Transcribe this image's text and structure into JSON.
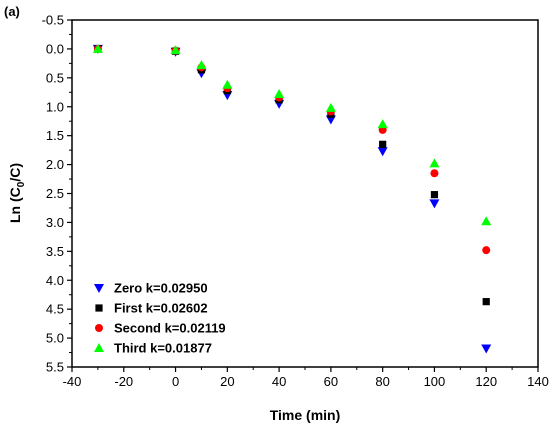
{
  "chart_data": {
    "type": "scatter",
    "panel_label": "(a)",
    "xlabel": "Time (min)",
    "ylabel": {
      "main": "Ln (C",
      "sub": "0",
      "tail": "/C)"
    },
    "xlim": [
      -40,
      140
    ],
    "ylim": [
      -0.5,
      5.5
    ],
    "y_inverted": true,
    "xticks": [
      -40,
      -20,
      0,
      20,
      40,
      60,
      80,
      100,
      120,
      140
    ],
    "yticks": [
      "-0.5",
      "0.0",
      "0.5",
      "1.0",
      "1.5",
      "2.0",
      "2.5",
      "3.0",
      "3.5",
      "4.0",
      "4.5",
      "5.0",
      "5.5"
    ],
    "legend_position": "bottom-left",
    "x": [
      -30,
      0,
      10,
      20,
      40,
      60,
      80,
      100,
      120
    ],
    "series": [
      {
        "name": "Zero k=0.02950",
        "marker": "triangle-down",
        "color": "#0000ff",
        "values": [
          0.0,
          0.05,
          0.42,
          0.8,
          0.95,
          1.22,
          1.77,
          2.67,
          5.18
        ]
      },
      {
        "name": "First k=0.02602",
        "marker": "square",
        "color": "#000000",
        "values": [
          0.0,
          0.04,
          0.36,
          0.72,
          0.88,
          1.13,
          1.65,
          2.52,
          4.37
        ]
      },
      {
        "name": "Second k=0.02119",
        "marker": "circle",
        "color": "#ff0000",
        "values": [
          0.0,
          0.03,
          0.32,
          0.68,
          0.84,
          1.08,
          1.4,
          2.15,
          3.48
        ]
      },
      {
        "name": "Third k=0.01877",
        "marker": "triangle-up",
        "color": "#00ff00",
        "values": [
          0.0,
          0.02,
          0.28,
          0.62,
          0.78,
          1.02,
          1.3,
          1.98,
          2.98
        ]
      }
    ]
  }
}
